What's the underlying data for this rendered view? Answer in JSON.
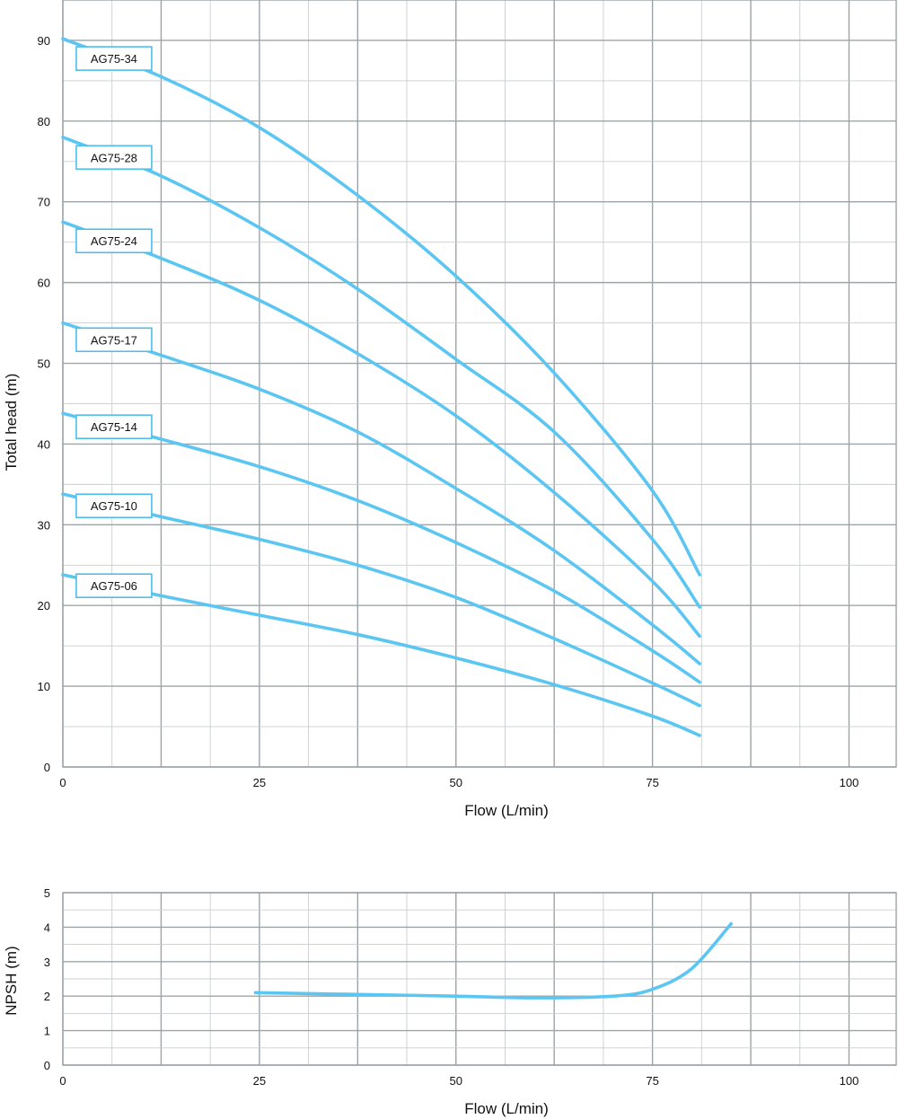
{
  "chart_data": [
    {
      "type": "line",
      "title": "",
      "xlabel": "Flow (L/min)",
      "ylabel": "Total head (m)",
      "xlim": [
        0,
        106
      ],
      "ylim": [
        0,
        95
      ],
      "xticks": [
        0,
        25,
        50,
        75,
        100
      ],
      "yticks": [
        0,
        10,
        20,
        30,
        40,
        50,
        60,
        70,
        80,
        90
      ],
      "grid": true,
      "legend": "none",
      "series": [
        {
          "name": "AG75-34",
          "color": "#5cc6f2",
          "x": [
            0,
            12.5,
            25,
            37.5,
            50,
            62.5,
            75,
            81
          ],
          "y": [
            90.2,
            85.5,
            79.2,
            70.8,
            60.8,
            48.8,
            34.2,
            23.8
          ]
        },
        {
          "name": "AG75-28",
          "color": "#5cc6f2",
          "x": [
            0,
            12.5,
            25,
            37.5,
            50,
            62.5,
            75,
            81
          ],
          "y": [
            78.0,
            73.2,
            66.8,
            59.2,
            50.5,
            41.5,
            28.2,
            19.8
          ]
        },
        {
          "name": "AG75-24",
          "color": "#5cc6f2",
          "x": [
            0,
            12.5,
            25,
            37.5,
            50,
            62.5,
            75,
            81
          ],
          "y": [
            67.5,
            63.0,
            57.8,
            51.2,
            43.5,
            34.0,
            23.0,
            16.2
          ]
        },
        {
          "name": "AG75-17",
          "color": "#5cc6f2",
          "x": [
            0,
            12.5,
            25,
            37.5,
            50,
            62.5,
            75,
            81
          ],
          "y": [
            55.0,
            51.0,
            46.8,
            41.5,
            34.5,
            26.8,
            17.6,
            12.8
          ]
        },
        {
          "name": "AG75-14",
          "color": "#5cc6f2",
          "x": [
            0,
            12.5,
            25,
            37.5,
            50,
            62.5,
            75,
            81
          ],
          "y": [
            43.8,
            40.6,
            37.2,
            33.0,
            27.8,
            21.8,
            14.4,
            10.5
          ]
        },
        {
          "name": "AG75-10",
          "color": "#5cc6f2",
          "x": [
            0,
            12.5,
            25,
            37.5,
            50,
            62.5,
            75,
            81
          ],
          "y": [
            33.8,
            31.0,
            28.2,
            25.0,
            21.0,
            15.9,
            10.4,
            7.6
          ]
        },
        {
          "name": "AG75-06",
          "color": "#5cc6f2",
          "x": [
            0,
            12.5,
            25,
            37.5,
            50,
            62.5,
            75,
            81
          ],
          "y": [
            23.8,
            21.2,
            18.8,
            16.4,
            13.5,
            10.2,
            6.3,
            3.9
          ]
        }
      ],
      "labels": [
        "AG75-34",
        "AG75-28",
        "AG75-24",
        "AG75-17",
        "AG75-14",
        "AG75-10",
        "AG75-06"
      ]
    },
    {
      "type": "line",
      "title": "",
      "xlabel": "Flow (L/min)",
      "ylabel": "NPSH (m)",
      "xlim": [
        0,
        106
      ],
      "ylim": [
        0,
        5
      ],
      "xticks": [
        0,
        25,
        50,
        75,
        100
      ],
      "yticks": [
        0,
        1,
        2,
        3,
        4,
        5
      ],
      "grid": true,
      "legend": "none",
      "series": [
        {
          "name": "",
          "color": "#5cc6f2",
          "x": [
            24.5,
            37.5,
            50,
            60,
            70,
            75,
            80,
            85
          ],
          "y": [
            2.1,
            2.05,
            2.0,
            1.95,
            2.0,
            2.2,
            2.8,
            4.1
          ]
        }
      ]
    }
  ]
}
